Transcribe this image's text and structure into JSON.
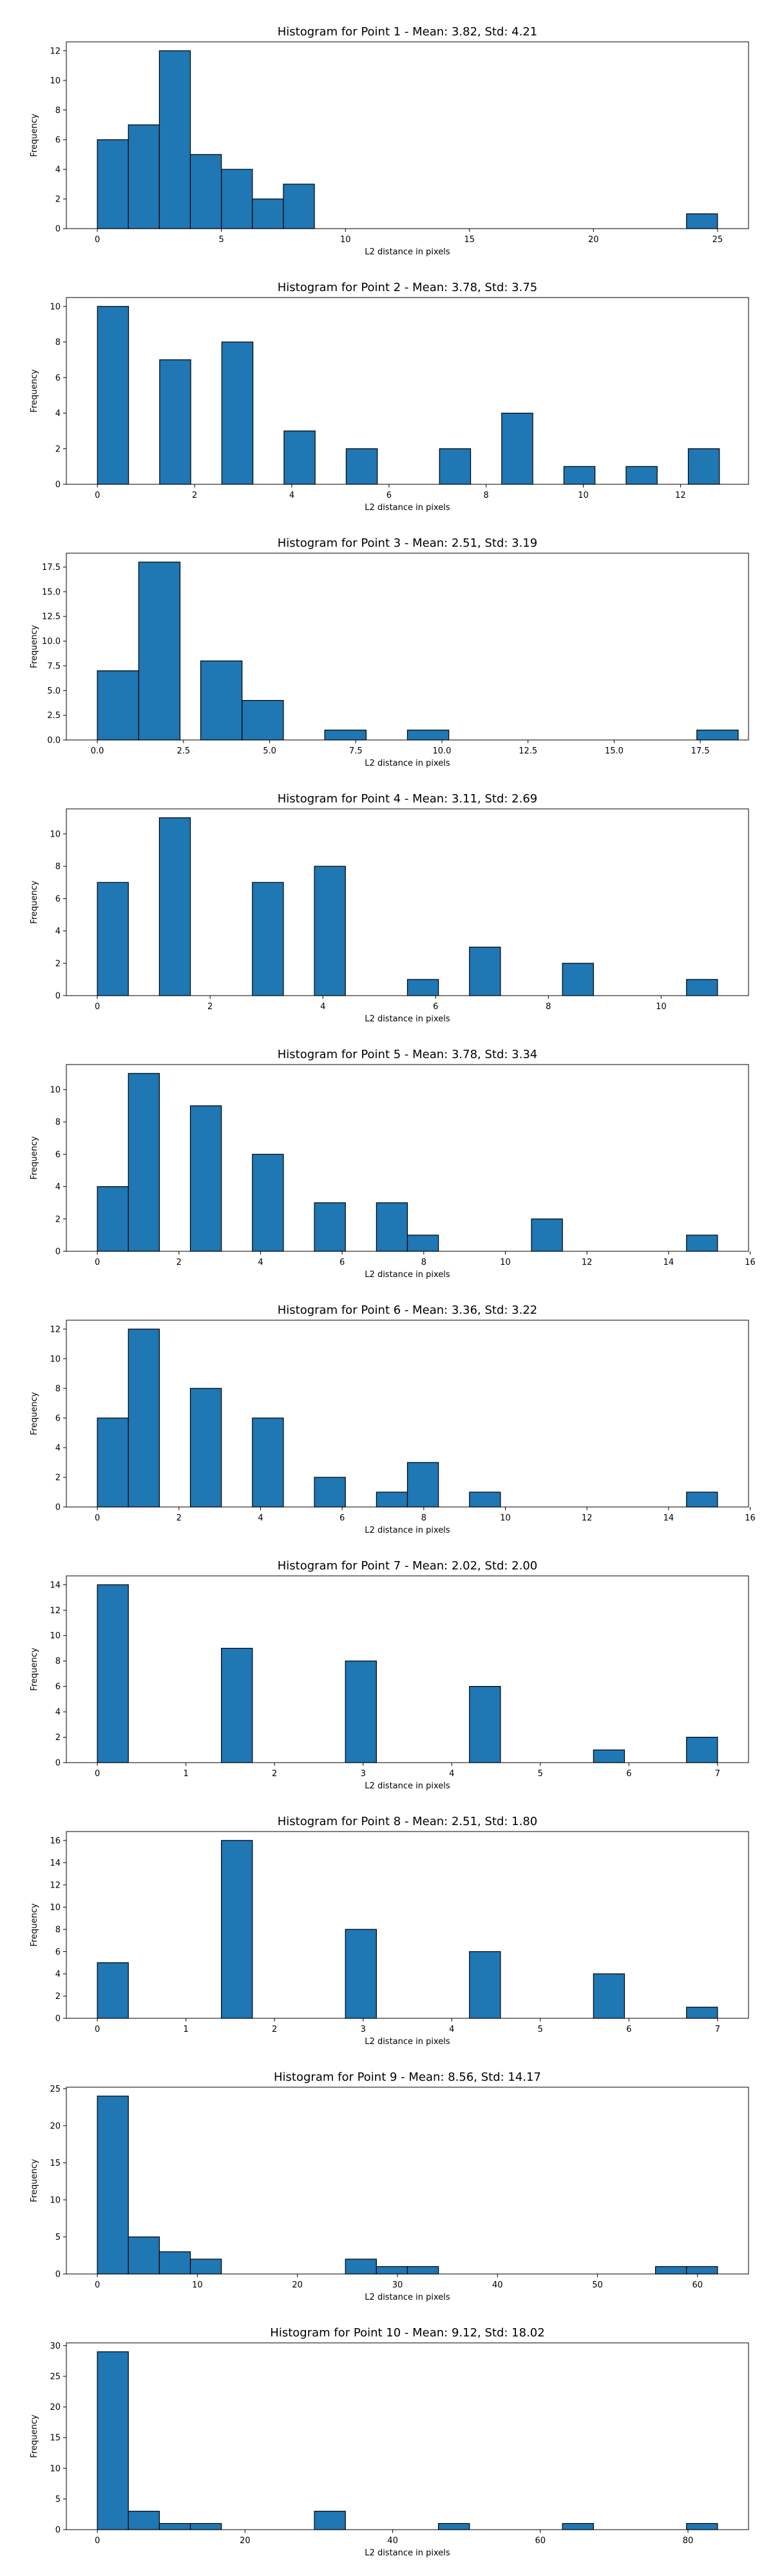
{
  "style": {
    "bar_color": "#1f77b4",
    "edge_color": "#000000",
    "grid": false,
    "legend": "none"
  },
  "chart_data": [
    {
      "type": "bar",
      "title": "Histogram for Point 1 - Mean: 3.82, Std: 4.21",
      "xlabel": "L2 distance in pixels",
      "ylabel": "Frequency",
      "xlim": [
        -1.25,
        26.25
      ],
      "ylim": [
        0,
        12.6
      ],
      "xticks": [
        0,
        5,
        10,
        15,
        20,
        25
      ],
      "yticks": [
        0,
        2,
        4,
        6,
        8,
        10,
        12
      ],
      "bins": [
        {
          "x0": 0.0,
          "x1": 1.25,
          "count": 6
        },
        {
          "x0": 1.25,
          "x1": 2.5,
          "count": 7
        },
        {
          "x0": 2.5,
          "x1": 3.75,
          "count": 12
        },
        {
          "x0": 3.75,
          "x1": 5.0,
          "count": 5
        },
        {
          "x0": 5.0,
          "x1": 6.25,
          "count": 4
        },
        {
          "x0": 6.25,
          "x1": 7.5,
          "count": 2
        },
        {
          "x0": 7.5,
          "x1": 8.75,
          "count": 3
        },
        {
          "x0": 23.75,
          "x1": 25.0,
          "count": 1
        }
      ]
    },
    {
      "type": "bar",
      "title": "Histogram for Point 2 - Mean: 3.78, Std: 3.75",
      "xlabel": "L2 distance in pixels",
      "ylabel": "Frequency",
      "xlim": [
        -0.64,
        13.4
      ],
      "ylim": [
        0,
        10.5
      ],
      "xticks": [
        0,
        2,
        4,
        6,
        8,
        10,
        12
      ],
      "yticks": [
        0,
        2,
        4,
        6,
        8,
        10
      ],
      "bins": [
        {
          "x0": 0.0,
          "x1": 0.64,
          "count": 10
        },
        {
          "x0": 1.28,
          "x1": 1.92,
          "count": 7
        },
        {
          "x0": 2.56,
          "x1": 3.2,
          "count": 8
        },
        {
          "x0": 3.84,
          "x1": 4.48,
          "count": 3
        },
        {
          "x0": 5.12,
          "x1": 5.76,
          "count": 2
        },
        {
          "x0": 7.04,
          "x1": 7.68,
          "count": 2
        },
        {
          "x0": 8.32,
          "x1": 8.96,
          "count": 4
        },
        {
          "x0": 9.6,
          "x1": 10.24,
          "count": 1
        },
        {
          "x0": 10.88,
          "x1": 11.52,
          "count": 1
        },
        {
          "x0": 12.16,
          "x1": 12.8,
          "count": 2
        }
      ]
    },
    {
      "type": "bar",
      "title": "Histogram for Point 3 - Mean: 2.51, Std: 3.19",
      "xlabel": "L2 distance in pixels",
      "ylabel": "Frequency",
      "xlim": [
        -0.9,
        18.9
      ],
      "ylim": [
        0,
        18.9
      ],
      "xticks": [
        0.0,
        2.5,
        5.0,
        7.5,
        10.0,
        12.5,
        15.0,
        17.5
      ],
      "xtick_labels": [
        "0.0",
        "2.5",
        "5.0",
        "7.5",
        "10.0",
        "12.5",
        "15.0",
        "17.5"
      ],
      "yticks": [
        0.0,
        2.5,
        5.0,
        7.5,
        10.0,
        12.5,
        15.0,
        17.5
      ],
      "ytick_labels": [
        "0.0",
        "2.5",
        "5.0",
        "7.5",
        "10.0",
        "12.5",
        "15.0",
        "17.5"
      ],
      "bins": [
        {
          "x0": 0.0,
          "x1": 1.2,
          "count": 7
        },
        {
          "x0": 1.2,
          "x1": 2.4,
          "count": 18
        },
        {
          "x0": 3.0,
          "x1": 4.2,
          "count": 8
        },
        {
          "x0": 4.2,
          "x1": 5.4,
          "count": 4
        },
        {
          "x0": 6.6,
          "x1": 7.8,
          "count": 1
        },
        {
          "x0": 9.0,
          "x1": 10.2,
          "count": 1
        },
        {
          "x0": 17.4,
          "x1": 18.6,
          "count": 1
        }
      ]
    },
    {
      "type": "bar",
      "title": "Histogram for Point 4 - Mean: 3.11, Std: 2.69",
      "xlabel": "L2 distance in pixels",
      "ylabel": "Frequency",
      "xlim": [
        -0.55,
        11.55
      ],
      "ylim": [
        0,
        11.55
      ],
      "xticks": [
        0,
        2,
        4,
        6,
        8,
        10
      ],
      "yticks": [
        0,
        2,
        4,
        6,
        8,
        10
      ],
      "bins": [
        {
          "x0": 0.0,
          "x1": 0.55,
          "count": 7
        },
        {
          "x0": 1.1,
          "x1": 1.65,
          "count": 11
        },
        {
          "x0": 2.75,
          "x1": 3.3,
          "count": 7
        },
        {
          "x0": 3.85,
          "x1": 4.4,
          "count": 8
        },
        {
          "x0": 5.5,
          "x1": 6.05,
          "count": 1
        },
        {
          "x0": 6.6,
          "x1": 7.15,
          "count": 3
        },
        {
          "x0": 8.25,
          "x1": 8.8,
          "count": 2
        },
        {
          "x0": 10.45,
          "x1": 11.0,
          "count": 1
        }
      ]
    },
    {
      "type": "bar",
      "title": "Histogram for Point 5 - Mean: 3.78, Std: 3.34",
      "xlabel": "L2 distance in pixels",
      "ylabel": "Frequency",
      "xlim": [
        -0.76,
        15.96
      ],
      "ylim": [
        0,
        11.55
      ],
      "xticks": [
        0,
        2,
        4,
        6,
        8,
        10,
        12,
        14,
        16
      ],
      "yticks": [
        0,
        2,
        4,
        6,
        8,
        10
      ],
      "bins": [
        {
          "x0": 0.0,
          "x1": 0.76,
          "count": 4
        },
        {
          "x0": 0.76,
          "x1": 1.52,
          "count": 11
        },
        {
          "x0": 2.28,
          "x1": 3.04,
          "count": 9
        },
        {
          "x0": 3.8,
          "x1": 4.56,
          "count": 6
        },
        {
          "x0": 5.32,
          "x1": 6.08,
          "count": 3
        },
        {
          "x0": 6.84,
          "x1": 7.6,
          "count": 3
        },
        {
          "x0": 7.6,
          "x1": 8.36,
          "count": 1
        },
        {
          "x0": 10.64,
          "x1": 11.4,
          "count": 2
        },
        {
          "x0": 14.44,
          "x1": 15.2,
          "count": 1
        }
      ]
    },
    {
      "type": "bar",
      "title": "Histogram for Point 6 - Mean: 3.36, Std: 3.22",
      "xlabel": "L2 distance in pixels",
      "ylabel": "Frequency",
      "xlim": [
        -0.76,
        15.96
      ],
      "ylim": [
        0,
        12.6
      ],
      "xticks": [
        0,
        2,
        4,
        6,
        8,
        10,
        12,
        14,
        16
      ],
      "yticks": [
        0,
        2,
        4,
        6,
        8,
        10,
        12
      ],
      "bins": [
        {
          "x0": 0.0,
          "x1": 0.76,
          "count": 6
        },
        {
          "x0": 0.76,
          "x1": 1.52,
          "count": 12
        },
        {
          "x0": 2.28,
          "x1": 3.04,
          "count": 8
        },
        {
          "x0": 3.8,
          "x1": 4.56,
          "count": 6
        },
        {
          "x0": 5.32,
          "x1": 6.08,
          "count": 2
        },
        {
          "x0": 6.84,
          "x1": 7.6,
          "count": 1
        },
        {
          "x0": 7.6,
          "x1": 8.36,
          "count": 3
        },
        {
          "x0": 9.12,
          "x1": 9.88,
          "count": 1
        },
        {
          "x0": 14.44,
          "x1": 15.2,
          "count": 1
        }
      ]
    },
    {
      "type": "bar",
      "title": "Histogram for Point 7 - Mean: 2.02, Std: 2.00",
      "xlabel": "L2 distance in pixels",
      "ylabel": "Frequency",
      "xlim": [
        -0.35,
        7.35
      ],
      "ylim": [
        0,
        14.7
      ],
      "xticks": [
        0,
        1,
        2,
        3,
        4,
        5,
        6,
        7
      ],
      "yticks": [
        0,
        2,
        4,
        6,
        8,
        10,
        12,
        14
      ],
      "bins": [
        {
          "x0": 0.0,
          "x1": 0.35,
          "count": 14
        },
        {
          "x0": 1.4,
          "x1": 1.75,
          "count": 9
        },
        {
          "x0": 2.8,
          "x1": 3.15,
          "count": 8
        },
        {
          "x0": 4.2,
          "x1": 4.55,
          "count": 6
        },
        {
          "x0": 5.6,
          "x1": 5.95,
          "count": 1
        },
        {
          "x0": 6.65,
          "x1": 7.0,
          "count": 2
        }
      ]
    },
    {
      "type": "bar",
      "title": "Histogram for Point 8 - Mean: 2.51, Std: 1.80",
      "xlabel": "L2 distance in pixels",
      "ylabel": "Frequency",
      "xlim": [
        -0.35,
        7.35
      ],
      "ylim": [
        0,
        16.8
      ],
      "xticks": [
        0,
        1,
        2,
        3,
        4,
        5,
        6,
        7
      ],
      "yticks": [
        0,
        2,
        4,
        6,
        8,
        10,
        12,
        14,
        16
      ],
      "bins": [
        {
          "x0": 0.0,
          "x1": 0.35,
          "count": 5
        },
        {
          "x0": 1.4,
          "x1": 1.75,
          "count": 16
        },
        {
          "x0": 2.8,
          "x1": 3.15,
          "count": 8
        },
        {
          "x0": 4.2,
          "x1": 4.55,
          "count": 6
        },
        {
          "x0": 5.6,
          "x1": 5.95,
          "count": 4
        },
        {
          "x0": 6.65,
          "x1": 7.0,
          "count": 1
        }
      ]
    },
    {
      "type": "bar",
      "title": "Histogram for Point 9 - Mean: 8.56, Std: 14.17",
      "xlabel": "L2 distance in pixels",
      "ylabel": "Frequency",
      "xlim": [
        -3.1,
        65.1
      ],
      "ylim": [
        0,
        25.2
      ],
      "xticks": [
        0,
        10,
        20,
        30,
        40,
        50,
        60
      ],
      "yticks": [
        0,
        5,
        10,
        15,
        20,
        25
      ],
      "bins": [
        {
          "x0": 0.0,
          "x1": 3.1,
          "count": 24
        },
        {
          "x0": 3.1,
          "x1": 6.2,
          "count": 5
        },
        {
          "x0": 6.2,
          "x1": 9.3,
          "count": 3
        },
        {
          "x0": 9.3,
          "x1": 12.4,
          "count": 2
        },
        {
          "x0": 24.8,
          "x1": 27.9,
          "count": 2
        },
        {
          "x0": 27.9,
          "x1": 31.0,
          "count": 1
        },
        {
          "x0": 31.0,
          "x1": 34.1,
          "count": 1
        },
        {
          "x0": 55.8,
          "x1": 58.9,
          "count": 1
        },
        {
          "x0": 58.9,
          "x1": 62.0,
          "count": 1
        }
      ]
    },
    {
      "type": "bar",
      "title": "Histogram for Point 10 - Mean: 9.12, Std: 18.02",
      "xlabel": "L2 distance in pixels",
      "ylabel": "Frequency",
      "xlim": [
        -4.2,
        88.2
      ],
      "ylim": [
        0,
        30.45
      ],
      "xticks": [
        0,
        20,
        40,
        60,
        80
      ],
      "yticks": [
        0,
        5,
        10,
        15,
        20,
        25,
        30
      ],
      "bins": [
        {
          "x0": 0.0,
          "x1": 4.2,
          "count": 29
        },
        {
          "x0": 4.2,
          "x1": 8.4,
          "count": 3
        },
        {
          "x0": 8.4,
          "x1": 12.6,
          "count": 1
        },
        {
          "x0": 12.6,
          "x1": 16.8,
          "count": 1
        },
        {
          "x0": 29.4,
          "x1": 33.6,
          "count": 3
        },
        {
          "x0": 46.2,
          "x1": 50.4,
          "count": 1
        },
        {
          "x0": 63.0,
          "x1": 67.2,
          "count": 1
        },
        {
          "x0": 79.8,
          "x1": 84.0,
          "count": 1
        }
      ]
    }
  ]
}
